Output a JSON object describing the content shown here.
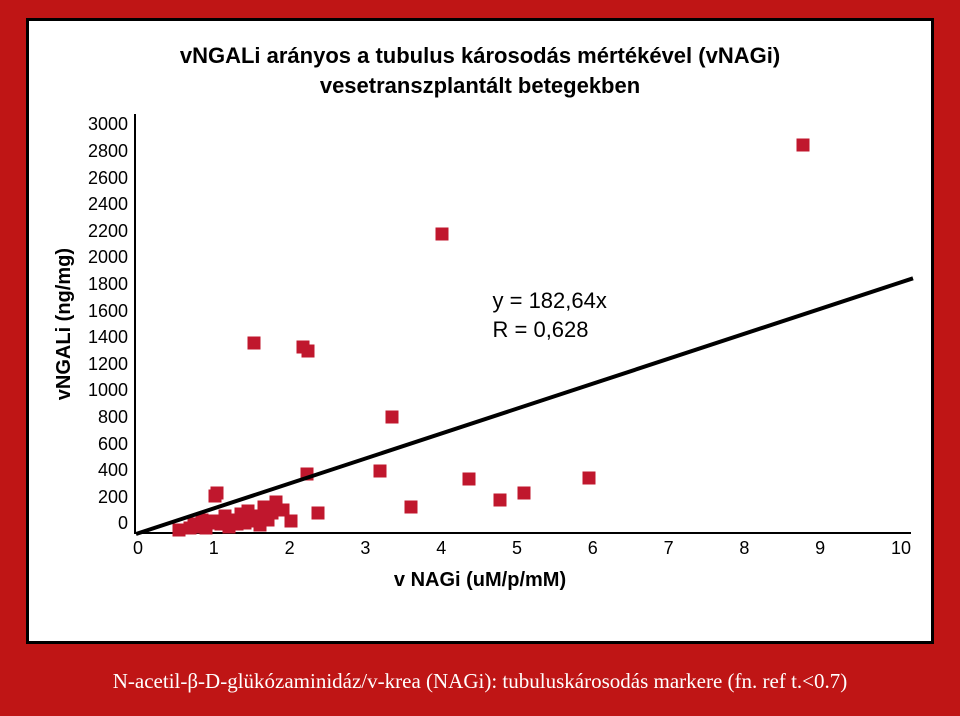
{
  "background_color": "#bf1515",
  "panel_bg": "#ffffff",
  "panel_border": "#000000",
  "title": {
    "line1": "vNGALi arányos a tubulus károsodás mértékével (vNAGi)",
    "line2": "vesetranszplantált betegekben",
    "fontsize": 22,
    "fontweight": "bold",
    "color": "#000000"
  },
  "chart": {
    "type": "scatter",
    "xlim": [
      0,
      10
    ],
    "ylim": [
      0,
      3000
    ],
    "xlabel": "v NAGi (uM/p/mM)",
    "ylabel": "vNGALi (ng/mg)",
    "label_fontsize": 20,
    "tick_fontsize": 18,
    "xticks": [
      0,
      1,
      2,
      3,
      4,
      5,
      6,
      7,
      8,
      9,
      10
    ],
    "yticks": [
      0,
      200,
      400,
      600,
      800,
      1000,
      1200,
      1400,
      1600,
      1800,
      2000,
      2200,
      2400,
      2600,
      2800,
      3000
    ],
    "marker_color": "#c0172d",
    "marker_size": 13,
    "axis_color": "#000000",
    "axis_width": 2,
    "regression": {
      "slope": 182.64,
      "intercept": 0,
      "r": 0.628,
      "line_color": "#000000",
      "line_width": 4
    },
    "reg_annot": {
      "l1": "y = 182,64x",
      "l2": "R = 0,628",
      "fontsize": 22
    },
    "stray_white_text": "y",
    "points": [
      [
        0.55,
        20
      ],
      [
        0.7,
        30
      ],
      [
        0.75,
        60
      ],
      [
        0.8,
        40
      ],
      [
        0.85,
        90
      ],
      [
        0.9,
        30
      ],
      [
        0.95,
        70
      ],
      [
        1.0,
        80
      ],
      [
        1.02,
        260
      ],
      [
        1.05,
        280
      ],
      [
        1.1,
        60
      ],
      [
        1.15,
        120
      ],
      [
        1.2,
        40
      ],
      [
        1.25,
        90
      ],
      [
        1.3,
        60
      ],
      [
        1.35,
        130
      ],
      [
        1.4,
        70
      ],
      [
        1.45,
        150
      ],
      [
        1.5,
        80
      ],
      [
        1.52,
        1360
      ],
      [
        1.55,
        120
      ],
      [
        1.6,
        50
      ],
      [
        1.65,
        180
      ],
      [
        1.7,
        90
      ],
      [
        1.75,
        140
      ],
      [
        1.8,
        220
      ],
      [
        1.9,
        160
      ],
      [
        2.0,
        80
      ],
      [
        2.15,
        1330
      ],
      [
        2.22,
        1300
      ],
      [
        2.2,
        420
      ],
      [
        2.35,
        140
      ],
      [
        3.15,
        440
      ],
      [
        3.3,
        830
      ],
      [
        3.55,
        180
      ],
      [
        3.95,
        2140
      ],
      [
        4.3,
        380
      ],
      [
        4.7,
        230
      ],
      [
        5.0,
        280
      ],
      [
        5.85,
        390
      ],
      [
        8.6,
        2780
      ]
    ]
  },
  "footnote": "N-acetil-β-D-glükózaminidáz/v-krea (NAGi): tubuluskárosodás markere (fn. ref t.<0.7)"
}
